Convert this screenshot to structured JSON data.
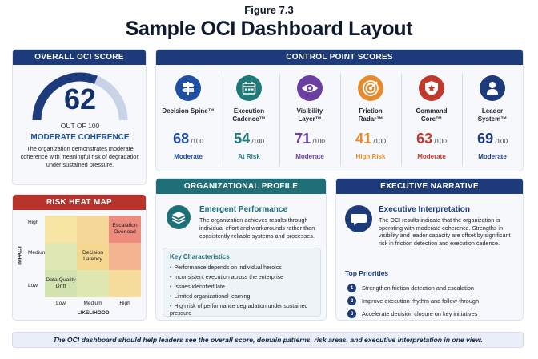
{
  "figure_label": "Figure 7.3",
  "title": "Sample OCI Dashboard Layout",
  "overall": {
    "header": "OVERALL OCI SCORE",
    "score": "62",
    "score_value": 62,
    "out_of": "OUT OF 100",
    "state": "MODERATE COHERENCE",
    "description": "The organization demonstrates moderate coherence with meaningful risk of degradation under sustained pressure."
  },
  "control": {
    "header": "CONTROL POINT SCORES",
    "points": [
      {
        "name": "Decision Spine™",
        "score": "68",
        "max": "/100",
        "status": "Moderate",
        "color": "#1e4fa3",
        "icon": "signpost-icon"
      },
      {
        "name": "Execution Cadence™",
        "score": "54",
        "max": "/100",
        "status": "At Risk",
        "color": "#1f7a7a",
        "icon": "calendar-icon"
      },
      {
        "name": "Visibility Layer™",
        "score": "71",
        "max": "/100",
        "status": "Moderate",
        "color": "#6a3fa0",
        "icon": "eye-icon"
      },
      {
        "name": "Friction Radar™",
        "score": "41",
        "max": "/100",
        "status": "High Risk",
        "color": "#e8892b",
        "icon": "target-icon"
      },
      {
        "name": "Command Core™",
        "score": "63",
        "max": "/100",
        "status": "Moderate",
        "color": "#c0392b",
        "icon": "shield-star-icon"
      },
      {
        "name": "Leader System™",
        "score": "69",
        "max": "/100",
        "status": "Moderate",
        "color": "#1d3a7a",
        "icon": "person-icon"
      }
    ]
  },
  "heatmap": {
    "header": "RISK HEAT MAP",
    "y_label": "IMPACT",
    "x_label": "LIKELIHOOD",
    "y_ticks": [
      "High",
      "Medium",
      "Low"
    ],
    "x_ticks": [
      "Low",
      "Medium",
      "High"
    ],
    "cells": [
      {
        "label": "Escalation Overload",
        "row": "High",
        "col": "High"
      },
      {
        "label": "Decision Latency",
        "row": "Medium",
        "col": "Medium"
      },
      {
        "label": "Data Quality Drift",
        "row": "Low",
        "col": "Low"
      }
    ]
  },
  "profile": {
    "header": "ORGANIZATIONAL PROFILE",
    "title": "Emergent Performance",
    "description": "The organization achieves results through individual effort and workarounds rather than consistently reliable systems and processes.",
    "kc_title": "Key Characteristics",
    "characteristics": [
      "Performance depends on individual heroics",
      "Inconsistent execution across the enterprise",
      "Issues identified late",
      "Limited organizational learning",
      "High risk of performance degradation under sustained pressure"
    ]
  },
  "narrative": {
    "header": "EXECUTIVE NARRATIVE",
    "title": "Executive Interpretation",
    "description": "The OCI results indicate that the organization is operating with moderate coherence. Strengths in visibility and leader capacity are offset by significant risk in friction detection and execution cadence.",
    "priorities_title": "Top Priorities",
    "priorities": [
      {
        "num": "1",
        "text": "Strengthen friction detection and escalation"
      },
      {
        "num": "2",
        "text": "Improve execution rhythm and follow-through"
      },
      {
        "num": "3",
        "text": "Accelerate decision closure on key initiatives"
      }
    ]
  },
  "footer": "The OCI dashboard should help leaders see the overall score, domain patterns, risk areas, and executive interpretation in one view.",
  "colors": {
    "navy": "#1d3a7a",
    "teal": "#1f6f78",
    "red": "#b7332c"
  }
}
